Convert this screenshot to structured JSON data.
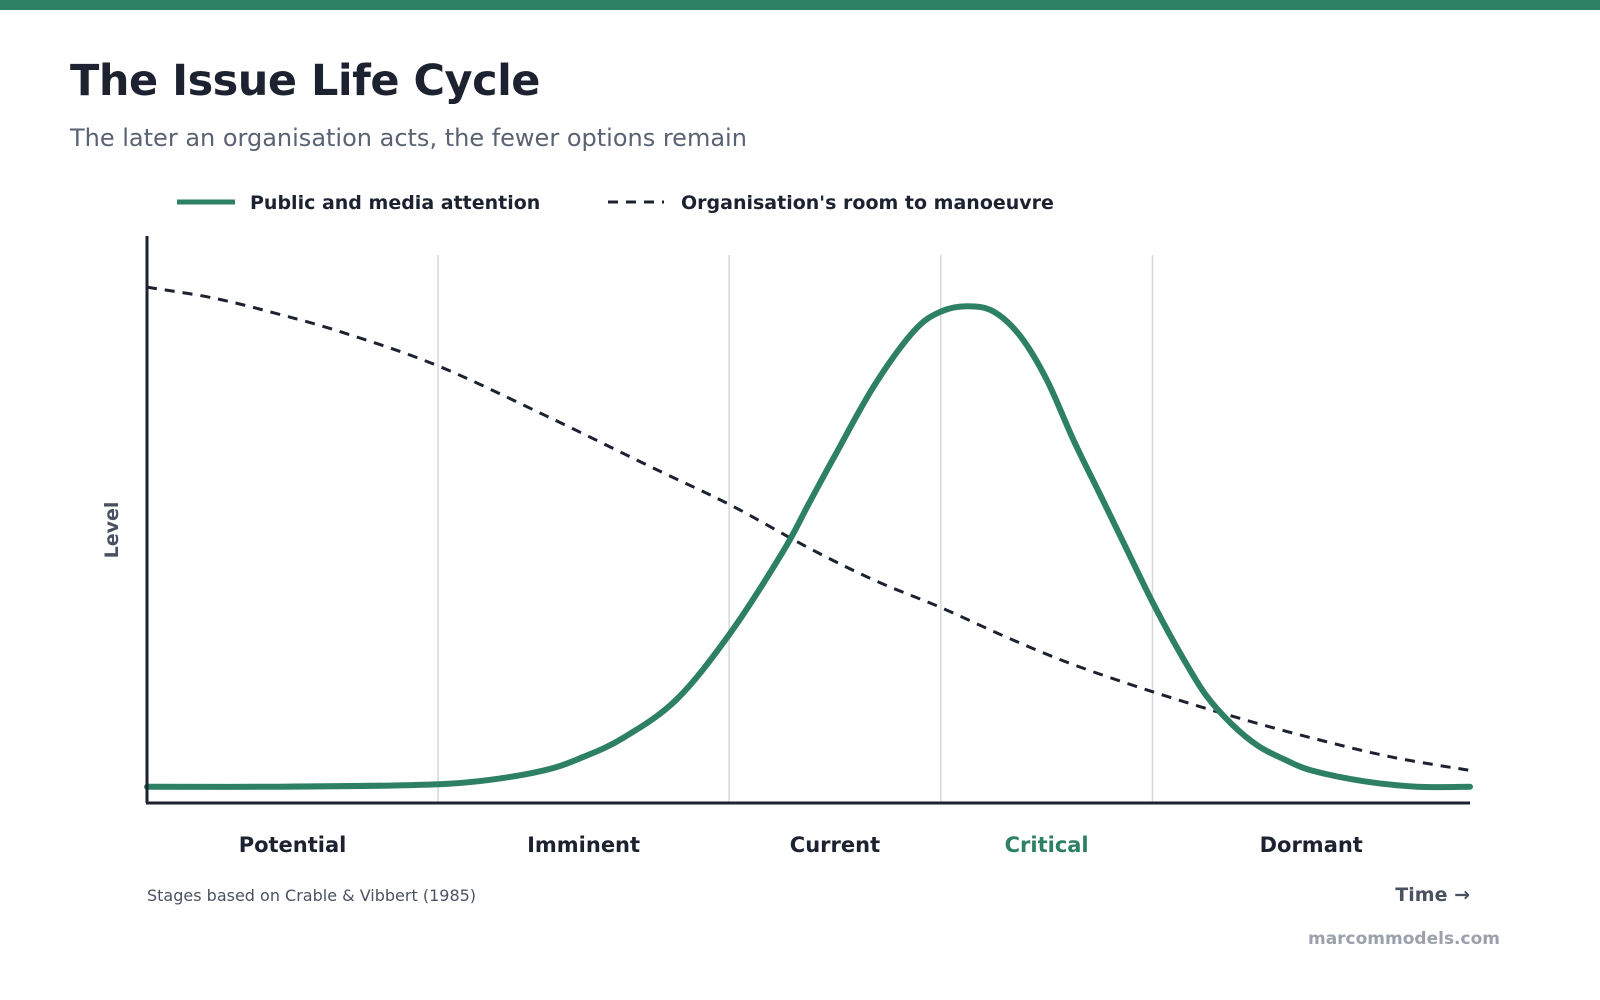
{
  "colors": {
    "accent": "#2e8065",
    "dark": "#1c2230",
    "muted": "#4a5262",
    "gridline": "#d4d7dc",
    "brand": "#9aa1ab"
  },
  "header": {
    "title": "The Issue Life Cycle",
    "subtitle": "The later an organisation acts, the fewer options remain"
  },
  "chart_data": {
    "type": "line",
    "title": "The Issue Life Cycle",
    "subtitle": "The later an organisation acts, the fewer options remain",
    "xlabel": "Time →",
    "ylabel": "Level",
    "xlim": [
      0,
      100
    ],
    "ylim": [
      0,
      100
    ],
    "grid": "vertical stage dividers",
    "legend_position": "top",
    "stages": [
      {
        "name": "Potential",
        "start": 0,
        "end": 22,
        "highlight": false
      },
      {
        "name": "Imminent",
        "start": 22,
        "end": 44,
        "highlight": false
      },
      {
        "name": "Current",
        "start": 44,
        "end": 60,
        "highlight": false
      },
      {
        "name": "Critical",
        "start": 60,
        "end": 76,
        "highlight": true
      },
      {
        "name": "Dormant",
        "start": 76,
        "end": 100,
        "highlight": false
      }
    ],
    "series": [
      {
        "name": "Public and media attention",
        "style": "solid",
        "color": "#2e8065",
        "x": [
          0,
          10,
          20,
          25,
          30,
          33,
          36,
          40,
          44,
          48,
          50,
          52,
          55,
          58,
          60,
          62,
          64,
          66,
          68,
          70,
          72,
          74,
          76,
          78,
          80,
          82,
          84,
          86,
          88,
          92,
          96,
          100
        ],
        "y": [
          3,
          3,
          3.3,
          4,
          6,
          8.5,
          12,
          19,
          31,
          46,
          55,
          64,
          77,
          87,
          90.5,
          91.5,
          90.5,
          86,
          78,
          67,
          57,
          47,
          37,
          28,
          20,
          14.5,
          10.5,
          8,
          6,
          4,
          3,
          3
        ]
      },
      {
        "name": "Organisation's room to manoeuvre",
        "style": "dashed",
        "color": "#1c2230",
        "x": [
          0,
          5,
          10,
          15,
          22,
          30,
          38,
          44,
          50,
          55,
          60,
          65,
          70,
          76,
          82,
          88,
          94,
          100
        ],
        "y": [
          95,
          93,
          90,
          86.5,
          80.5,
          71.5,
          62,
          55,
          47,
          41,
          36,
          30.5,
          25.5,
          20.5,
          16,
          12,
          8.5,
          6
        ]
      }
    ],
    "annotations": {
      "footnote": "Stages based on Crable & Vibbert (1985)"
    }
  },
  "footer": {
    "brand": "marcommodels.com"
  }
}
